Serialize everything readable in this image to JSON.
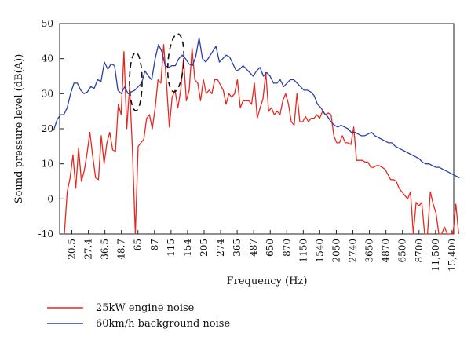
{
  "chart_data": {
    "type": "line",
    "xlabel": "Frequency (Hz)",
    "ylabel": "Sound pressure level (dB(A))",
    "ylim": [
      -10,
      50
    ],
    "yticks": [
      -10,
      0,
      10,
      20,
      30,
      40,
      50
    ],
    "x_scale": "third-octave band index",
    "x_tick_labels": [
      "20.5",
      "27.4",
      "36.5",
      "48.7",
      "65",
      "87",
      "115",
      "154",
      "205",
      "274",
      "365",
      "487",
      "650",
      "870",
      "1150",
      "1540",
      "2050",
      "2740",
      "3650",
      "4870",
      "6500",
      "8700",
      "11,500",
      "15,400"
    ],
    "grid": false,
    "legend_position": "bottom",
    "series": [
      {
        "name": "25kW engine noise",
        "color": "#e8281f",
        "values": [
          -10,
          2,
          6,
          12.5,
          3,
          14.5,
          5,
          8,
          13,
          19,
          12,
          6,
          5.5,
          18,
          10,
          16,
          19,
          14,
          13.5,
          27,
          24,
          42,
          20,
          32,
          14,
          -10,
          15,
          16,
          17,
          23,
          24,
          20,
          26,
          34,
          33,
          44,
          33,
          20.5,
          29,
          31,
          26,
          31,
          40,
          28,
          31,
          43,
          34,
          33,
          28,
          34,
          30,
          31,
          30,
          34,
          34,
          32.5,
          31,
          27,
          30,
          29,
          30,
          34,
          26,
          28,
          28,
          28,
          27,
          33,
          23,
          26,
          28.5,
          36,
          25,
          26,
          24,
          25,
          24,
          28,
          30,
          27,
          22,
          21,
          30,
          22,
          22,
          23.5,
          22,
          23,
          23,
          24,
          23,
          25,
          24,
          24.5,
          24,
          18,
          16,
          16,
          18,
          16,
          16,
          15.5,
          20.5,
          11,
          11,
          11,
          10.5,
          10.5,
          9,
          9,
          9.5,
          9.5,
          9,
          8.5,
          7,
          5.5,
          5.5,
          5,
          3,
          2,
          1,
          0,
          2,
          -10,
          -1,
          -2,
          -1,
          -10,
          -10,
          2,
          -1.5,
          -4,
          -10,
          -10,
          -8,
          -10,
          -10,
          -10,
          -1.5,
          -10
        ],
        "x_start": -0.45,
        "x_end": 23.4
      },
      {
        "name": "60km/h background noise",
        "color": "#2b3ea6",
        "values": [
          19.5,
          22.5,
          24,
          24,
          26,
          30,
          33,
          33,
          31,
          30,
          30.5,
          32,
          31.5,
          34,
          33.5,
          39,
          37,
          38.5,
          38,
          31,
          30,
          32,
          30,
          30.5,
          31,
          32,
          33,
          36.5,
          35,
          34,
          40,
          44,
          42,
          38,
          37.5,
          38,
          38,
          40,
          41,
          40,
          38.5,
          38,
          40.5,
          46,
          40,
          39,
          40.5,
          42,
          43.5,
          39,
          40,
          41,
          40.5,
          38.5,
          36.5,
          37,
          38,
          37,
          36,
          35,
          36.5,
          37.5,
          35,
          36,
          35,
          33,
          33,
          34,
          32,
          33,
          34,
          34,
          33,
          32,
          31,
          31,
          30.5,
          29.5,
          27,
          26,
          24.5,
          23.5,
          22,
          21,
          20.5,
          21,
          20.5,
          20,
          19,
          19,
          18.5,
          18,
          18,
          18.5,
          19,
          18,
          17.5,
          17,
          16.5,
          16,
          16,
          15,
          14.5,
          14,
          13.5,
          13,
          12.5,
          12,
          11.5,
          10.5,
          10,
          10,
          9.5,
          9,
          9,
          8.5,
          8,
          7.5,
          7,
          6.5,
          6
        ],
        "x_start": -1.1,
        "x_end": 23.45
      }
    ]
  },
  "legend": {
    "items": [
      {
        "label": "25kW engine noise",
        "color": "#e8281f"
      },
      {
        "label": "60km/h background noise",
        "color": "#2b3ea6"
      }
    ]
  }
}
